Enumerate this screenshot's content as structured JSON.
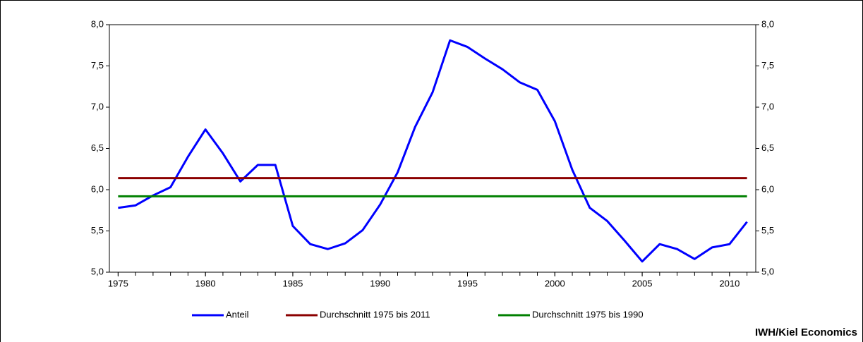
{
  "chart_data": {
    "type": "line",
    "x": [
      1975,
      1976,
      1977,
      1978,
      1979,
      1980,
      1981,
      1982,
      1983,
      1984,
      1985,
      1986,
      1987,
      1988,
      1989,
      1990,
      1991,
      1992,
      1993,
      1994,
      1995,
      1996,
      1997,
      1998,
      1999,
      2000,
      2001,
      2002,
      2003,
      2004,
      2005,
      2006,
      2007,
      2008,
      2009,
      2010,
      2011
    ],
    "xlim": [
      1974.5,
      2011.5
    ],
    "xticks": [
      1975,
      1980,
      1985,
      1990,
      1995,
      2000,
      2005,
      2010
    ],
    "ylim": [
      5,
      8
    ],
    "yticks": [
      {
        "value": 5,
        "label": "5,0"
      },
      {
        "value": 5.5,
        "label": "5,5"
      },
      {
        "value": 6,
        "label": "6,0"
      },
      {
        "value": 6.5,
        "label": "6,5"
      },
      {
        "value": 7,
        "label": "7,0"
      },
      {
        "value": 7.5,
        "label": "7,5"
      },
      {
        "value": 8,
        "label": "8,0"
      }
    ],
    "y2lim": [
      5,
      8
    ],
    "y2ticks": [
      {
        "value": 5,
        "label": "5,0"
      },
      {
        "value": 5.5,
        "label": "5,5"
      },
      {
        "value": 6,
        "label": "6,0"
      },
      {
        "value": 6.5,
        "label": "6,5"
      },
      {
        "value": 7,
        "label": "7,0"
      },
      {
        "value": 7.5,
        "label": "7,5"
      },
      {
        "value": 8,
        "label": "8,0"
      }
    ],
    "series": [
      {
        "name": "Anteil",
        "color": "#0000ff",
        "values": [
          5.78,
          5.81,
          5.93,
          6.03,
          6.4,
          6.73,
          6.44,
          6.1,
          6.3,
          6.3,
          5.56,
          5.34,
          5.28,
          5.35,
          5.51,
          5.82,
          6.21,
          6.76,
          7.18,
          7.81,
          7.73,
          7.59,
          7.46,
          7.3,
          7.21,
          6.83,
          6.24,
          5.78,
          5.62,
          5.38,
          5.13,
          5.34,
          5.28,
          5.16,
          5.3,
          5.34,
          5.61
        ]
      },
      {
        "name": "Durchschnitt 1975 bis 2011",
        "color": "#8b0000",
        "values": [
          6.14,
          6.14,
          6.14,
          6.14,
          6.14,
          6.14,
          6.14,
          6.14,
          6.14,
          6.14,
          6.14,
          6.14,
          6.14,
          6.14,
          6.14,
          6.14,
          6.14,
          6.14,
          6.14,
          6.14,
          6.14,
          6.14,
          6.14,
          6.14,
          6.14,
          6.14,
          6.14,
          6.14,
          6.14,
          6.14,
          6.14,
          6.14,
          6.14,
          6.14,
          6.14,
          6.14,
          6.14
        ]
      },
      {
        "name": "Durchschnitt 1975 bis 1990",
        "color": "#008000",
        "values": [
          5.92,
          5.92,
          5.92,
          5.92,
          5.92,
          5.92,
          5.92,
          5.92,
          5.92,
          5.92,
          5.92,
          5.92,
          5.92,
          5.92,
          5.92,
          5.92,
          5.92,
          5.92,
          5.92,
          5.92,
          5.92,
          5.92,
          5.92,
          5.92,
          5.92,
          5.92,
          5.92,
          5.92,
          5.92,
          5.92,
          5.92,
          5.92,
          5.92,
          5.92,
          5.92,
          5.92,
          5.92
        ]
      }
    ],
    "source": "IWH/Kiel Economics"
  }
}
